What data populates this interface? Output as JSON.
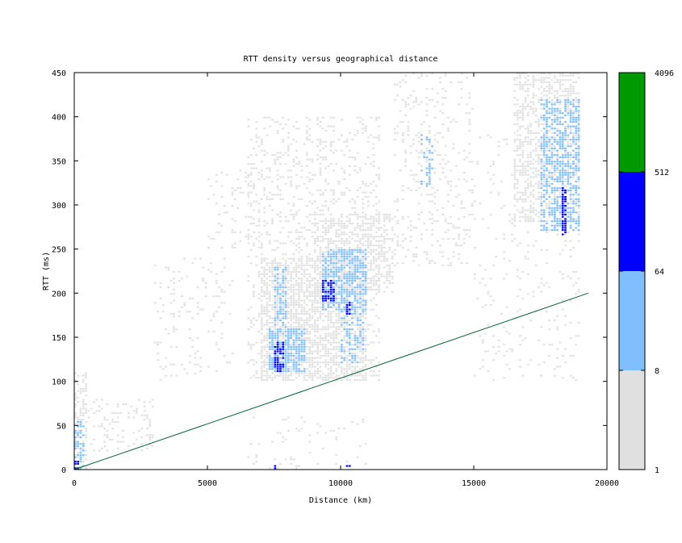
{
  "chart_data": {
    "type": "heatmap",
    "title": "RTT density versus geographical distance",
    "xlabel": "Distance (km)",
    "ylabel": "RTT (ms)",
    "xlim": [
      0,
      20000
    ],
    "ylim": [
      0,
      450
    ],
    "xticks": [
      0,
      5000,
      10000,
      15000,
      20000
    ],
    "yticks": [
      0,
      50,
      100,
      150,
      200,
      250,
      300,
      350,
      400,
      450
    ],
    "grid": false,
    "colorbar": {
      "scale": "log",
      "tick_labels": [
        "1",
        "8",
        "64",
        "512",
        "4096"
      ],
      "bands": [
        {
          "from": 1,
          "to": 8,
          "color": "#e0e0e0"
        },
        {
          "from": 8,
          "to": 64,
          "color": "#80bfff"
        },
        {
          "from": 64,
          "to": 512,
          "color": "#0000ff"
        },
        {
          "from": 512,
          "to": 4096,
          "color": "#009900"
        }
      ]
    },
    "bin_size": {
      "distance_km": 100,
      "rtt_ms": 2.5
    },
    "density_regions": [
      {
        "band": 1,
        "x": [
          0,
          500
        ],
        "y": [
          0,
          110
        ],
        "density": 0.45
      },
      {
        "band": 1,
        "x": [
          500,
          3000
        ],
        "y": [
          20,
          80
        ],
        "density": 0.15
      },
      {
        "band": 1,
        "x": [
          3000,
          6000
        ],
        "y": [
          100,
          240
        ],
        "density": 0.08
      },
      {
        "band": 1,
        "x": [
          5000,
          7000
        ],
        "y": [
          250,
          340
        ],
        "density": 0.1
      },
      {
        "band": 1,
        "x": [
          6500,
          11500
        ],
        "y": [
          100,
          400
        ],
        "density": 0.18
      },
      {
        "band": 1,
        "x": [
          9000,
          12000
        ],
        "y": [
          200,
          290
        ],
        "density": 0.45
      },
      {
        "band": 1,
        "x": [
          7000,
          11000
        ],
        "y": [
          100,
          240
        ],
        "density": 0.55
      },
      {
        "band": 1,
        "x": [
          12000,
          15000
        ],
        "y": [
          230,
          450
        ],
        "density": 0.12
      },
      {
        "band": 1,
        "x": [
          15000,
          19000
        ],
        "y": [
          100,
          380
        ],
        "density": 0.06
      },
      {
        "band": 1,
        "x": [
          16500,
          19000
        ],
        "y": [
          280,
          450
        ],
        "density": 0.45
      },
      {
        "band": 1,
        "x": [
          6500,
          11000
        ],
        "y": [
          0,
          60
        ],
        "density": 0.05
      },
      {
        "band": 2,
        "x": [
          0,
          400
        ],
        "y": [
          0,
          55
        ],
        "density": 0.5
      },
      {
        "band": 2,
        "x": [
          7300,
          8700
        ],
        "y": [
          110,
          160
        ],
        "density": 0.7
      },
      {
        "band": 2,
        "x": [
          7500,
          8000
        ],
        "y": [
          160,
          230
        ],
        "density": 0.45
      },
      {
        "band": 2,
        "x": [
          9300,
          11000
        ],
        "y": [
          180,
          250
        ],
        "density": 0.65
      },
      {
        "band": 2,
        "x": [
          10000,
          10900
        ],
        "y": [
          120,
          180
        ],
        "density": 0.35
      },
      {
        "band": 2,
        "x": [
          13000,
          13500
        ],
        "y": [
          320,
          380
        ],
        "density": 0.3
      },
      {
        "band": 2,
        "x": [
          17500,
          19000
        ],
        "y": [
          270,
          420
        ],
        "density": 0.5
      },
      {
        "band": 3,
        "x": [
          0,
          200
        ],
        "y": [
          0,
          10
        ],
        "density": 0.8
      },
      {
        "band": 3,
        "x": [
          7500,
          7900
        ],
        "y": [
          110,
          145
        ],
        "density": 0.55
      },
      {
        "band": 3,
        "x": [
          9300,
          9800
        ],
        "y": [
          190,
          215
        ],
        "density": 0.6
      },
      {
        "band": 3,
        "x": [
          10200,
          10400
        ],
        "y": [
          175,
          190
        ],
        "density": 0.4
      },
      {
        "band": 3,
        "x": [
          18300,
          18500
        ],
        "y": [
          265,
          320
        ],
        "density": 0.75
      },
      {
        "band": 3,
        "x": [
          7500,
          7600
        ],
        "y": [
          0,
          5
        ],
        "density": 0.8
      },
      {
        "band": 3,
        "x": [
          10200,
          10400
        ],
        "y": [
          0,
          5
        ],
        "density": 0.6
      }
    ],
    "reference_line": {
      "x": [
        0,
        19300
      ],
      "y": [
        0,
        200
      ],
      "color": "#006633"
    }
  }
}
